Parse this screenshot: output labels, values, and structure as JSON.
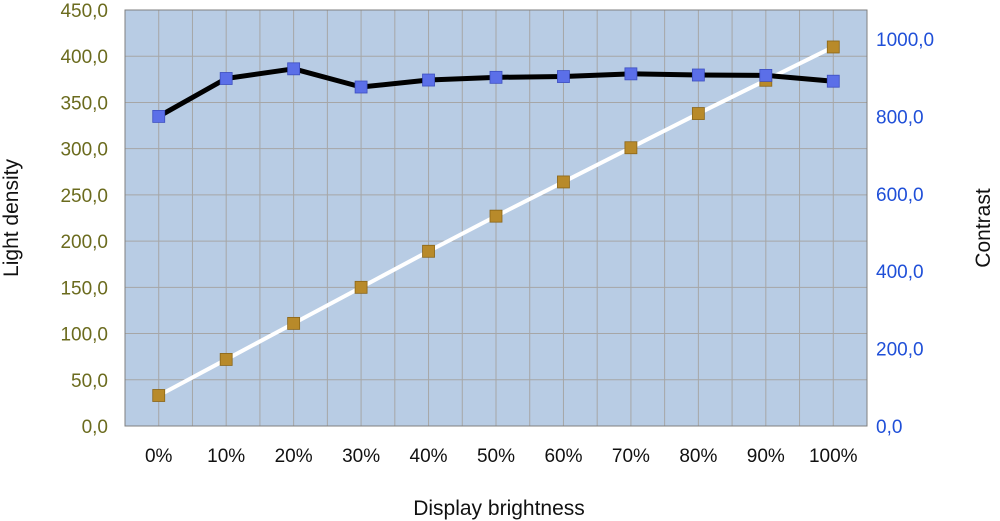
{
  "chart_data": {
    "type": "line",
    "categories": [
      "0%",
      "10%",
      "20%",
      "30%",
      "40%",
      "50%",
      "60%",
      "70%",
      "80%",
      "90%",
      "100%"
    ],
    "xlabel": "Display brightness",
    "ylabel_left": "Light density",
    "ylabel_right": "Contrast",
    "ylim_left": [
      0,
      450
    ],
    "ylim_right": [
      0,
      1075
    ],
    "left_ticks": [
      "0,0",
      "50,0",
      "100,0",
      "150,0",
      "200,0",
      "250,0",
      "300,0",
      "350,0",
      "400,0",
      "450,0"
    ],
    "right_ticks": [
      "0,0",
      "200,0",
      "400,0",
      "600,0",
      "800,0",
      "1000,0"
    ],
    "grid": true,
    "legend": "none",
    "series": [
      {
        "axis": "left",
        "line_color": "#ffffff",
        "marker_color": "#b88a2a",
        "values": [
          33,
          72,
          111,
          150,
          189,
          227,
          264,
          301,
          338,
          374,
          410
        ]
      },
      {
        "axis": "right",
        "line_color": "#000000",
        "marker_color": "#5b6fe8",
        "values": [
          800,
          898,
          923,
          876,
          894,
          901,
          903,
          910,
          907,
          906,
          891
        ]
      }
    ],
    "colors": {
      "plot_background": "#b8cce4",
      "grid": "#a6a6a6",
      "left_tick_text": "#6b6b1e",
      "right_tick_text": "#1f4fd8"
    }
  }
}
